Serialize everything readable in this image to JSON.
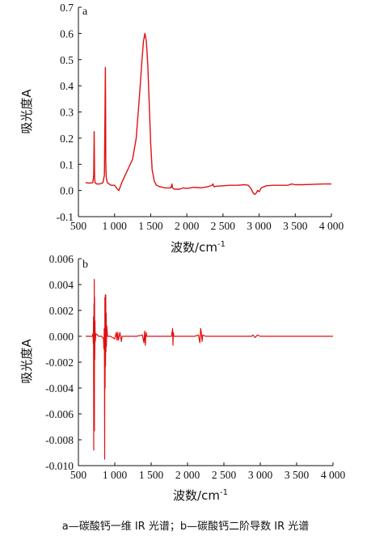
{
  "chart_data": [
    {
      "panel": "a",
      "type": "line",
      "ylabel": "吸光度A",
      "xlabel": "波数/cm⁻¹",
      "xlim": [
        500,
        4000
      ],
      "ylim": [
        -0.1,
        0.7
      ],
      "xticks": [
        500,
        1000,
        1500,
        2000,
        2500,
        3000,
        3500,
        4000
      ],
      "xtick_labels": [
        "500",
        "1 000",
        "1 500",
        "2 000",
        "2 500",
        "3 000",
        "3 500",
        "4 000"
      ],
      "yticks": [
        -0.1,
        0.0,
        0.1,
        0.2,
        0.3,
        0.4,
        0.5,
        0.6,
        0.7
      ],
      "ytick_labels": [
        "-0.1",
        "0.0",
        "0.1",
        "0.2",
        "0.3",
        "0.4",
        "0.5",
        "0.6",
        "0.7"
      ],
      "grid": false,
      "color": "#e01010",
      "series": [
        {
          "x": [
            600,
            650,
            700,
            712,
            718,
            724,
            730,
            750,
            800,
            840,
            860,
            868,
            873,
            876,
            879,
            885,
            900,
            950,
            1000,
            1040,
            1060,
            1080,
            1100,
            1150,
            1200,
            1250,
            1300,
            1350,
            1380,
            1400,
            1420,
            1440,
            1460,
            1480,
            1500,
            1520,
            1550,
            1580,
            1620,
            1700,
            1780,
            1795,
            1800,
            1810,
            1830,
            1900,
            1950,
            2000,
            2100,
            2200,
            2300,
            2350,
            2360,
            2370,
            2380,
            2400,
            2500,
            2600,
            2700,
            2800,
            2850,
            2880,
            2900,
            2920,
            2940,
            2960,
            2980,
            3000,
            3030,
            3100,
            3200,
            3300,
            3400,
            3450,
            3500,
            3600,
            3700,
            3800,
            3900,
            4000
          ],
          "y": [
            0.03,
            0.028,
            0.03,
            0.06,
            0.225,
            0.05,
            0.03,
            0.025,
            0.025,
            0.03,
            0.06,
            0.3,
            0.47,
            0.35,
            0.1,
            0.05,
            0.03,
            0.02,
            0.02,
            0.005,
            0.0,
            0.015,
            0.03,
            0.06,
            0.09,
            0.12,
            0.2,
            0.38,
            0.5,
            0.57,
            0.6,
            0.57,
            0.48,
            0.33,
            0.18,
            0.08,
            0.035,
            0.02,
            0.015,
            0.01,
            0.01,
            0.025,
            0.012,
            0.008,
            0.005,
            0.005,
            0.01,
            0.008,
            0.012,
            0.01,
            0.015,
            0.02,
            0.025,
            0.018,
            0.014,
            0.016,
            0.018,
            0.02,
            0.02,
            0.022,
            0.02,
            0.01,
            0.0,
            -0.01,
            -0.015,
            -0.01,
            0.0,
            -0.005,
            0.01,
            0.018,
            0.02,
            0.02,
            0.02,
            0.025,
            0.022,
            0.022,
            0.023,
            0.024,
            0.025,
            0.025
          ]
        }
      ]
    },
    {
      "panel": "b",
      "type": "line",
      "ylabel": "吸光度A",
      "xlabel": "波数/cm⁻¹",
      "xlim": [
        500,
        4000
      ],
      "ylim": [
        -0.01,
        0.006
      ],
      "xticks": [
        500,
        1000,
        1500,
        2000,
        2500,
        3000,
        3500,
        4000
      ],
      "xtick_labels": [
        "500",
        "1 000",
        "1 500",
        "2 000",
        "2 500",
        "3 000",
        "3 500",
        "4 000"
      ],
      "yticks": [
        -0.01,
        -0.008,
        -0.006,
        -0.004,
        -0.002,
        0.0,
        0.002,
        0.004,
        0.006
      ],
      "ytick_labels": [
        "-0.010",
        "-0.008",
        "-0.006",
        "-0.004",
        "-0.002",
        "0.000",
        "0.002",
        "0.004",
        "0.006"
      ],
      "grid": false,
      "color": "#e01010",
      "series": [
        {
          "x": [
            600,
            690,
            700,
            705,
            708,
            711,
            714,
            716,
            718,
            720,
            722,
            725,
            728,
            732,
            740,
            780,
            820,
            845,
            850,
            855,
            858,
            861,
            864,
            867,
            870,
            873,
            876,
            879,
            882,
            885,
            890,
            900,
            940,
            1000,
            1020,
            1030,
            1040,
            1050,
            1070,
            1080,
            1090,
            1100,
            1200,
            1300,
            1380,
            1400,
            1410,
            1420,
            1430,
            1440,
            1460,
            1500,
            1600,
            1700,
            1780,
            1795,
            1800,
            1805,
            1812,
            1830,
            1900,
            1950,
            2000,
            2100,
            2150,
            2170,
            2180,
            2190,
            2200,
            2210,
            2250,
            2300,
            2400,
            2500,
            2600,
            2700,
            2800,
            2880,
            2900,
            2930,
            2960,
            3000,
            3100,
            3300,
            3500,
            3700,
            3900,
            4000
          ],
          "y": [
            0.0,
            0.0,
            0.0002,
            -0.0006,
            0.0015,
            -0.0088,
            0.0025,
            -0.0025,
            0.0044,
            -0.0073,
            0.003,
            -0.0018,
            0.0012,
            -0.0004,
            0.0002,
            0.0,
            0.0,
            -0.0002,
            -0.001,
            0.0006,
            -0.0014,
            -0.0095,
            0.003,
            -0.004,
            0.0032,
            -0.0023,
            0.0032,
            -0.0012,
            0.0018,
            -0.0008,
            0.0008,
            0.0,
            0.0,
            -0.0002,
            0.0003,
            -0.0003,
            0.0003,
            -0.0003,
            0.0003,
            0.0,
            -0.0004,
            0.0,
            0.0,
            0.0,
            0.0001,
            -0.0005,
            0.0004,
            -0.0007,
            0.0003,
            0.0,
            0.0,
            0.0,
            0.0,
            0.0,
            0.0,
            0.0006,
            -0.0007,
            0.0003,
            0.0,
            0.0,
            0.0,
            0.0,
            0.0,
            0.0,
            0.0001,
            -0.0005,
            0.0006,
            0.0003,
            -0.0004,
            0.0001,
            0.0,
            0.0,
            0.0,
            0.0,
            0.0,
            0.0,
            0.0,
            0.0,
            0.0001,
            -0.0001,
            0.0001,
            0.0,
            0.0,
            0.0,
            0.0,
            0.0,
            0.0,
            0.0
          ]
        }
      ]
    }
  ],
  "panel_a": {
    "tag": "a",
    "xlabel_main": "波数/cm",
    "xlabel_sup": "-1",
    "ylabel": "吸光度A"
  },
  "panel_b": {
    "tag": "b",
    "xlabel_main": "波数/cm",
    "xlabel_sup": "-1",
    "ylabel": "吸光度A"
  },
  "caption": "a—碳酸钙一维 IR 光谱；b—碳酸钙二阶导数 IR 光谱"
}
